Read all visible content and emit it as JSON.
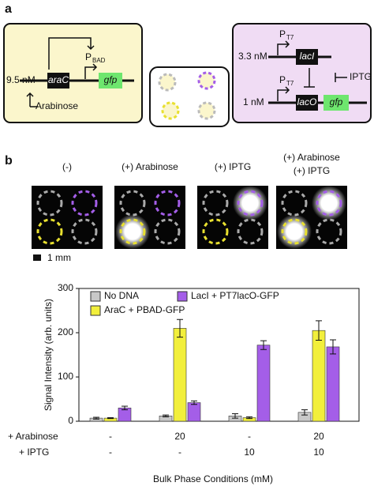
{
  "panel_a": {
    "label": "a",
    "left": {
      "conc": "9.5 nM",
      "gene": "araC",
      "reporter": "gfp",
      "promoter": "P",
      "promoter_sub": "BAD",
      "inducer": "Arabinose"
    },
    "right": {
      "promoter1": "P",
      "promoter1_sub": "T7",
      "conc1": "3.3 nM",
      "gene1": "lacI",
      "inducer": "IPTG",
      "promoter2": "P",
      "promoter2_sub": "T7",
      "conc2": "1 nM",
      "operator": "lacO",
      "reporter": "gfp"
    }
  },
  "panel_b": {
    "label": "b",
    "conditions": [
      [
        "(-)"
      ],
      [
        "(+) Arabinose"
      ],
      [
        "(+) IPTG"
      ],
      [
        "(+) Arabinose",
        "(+) IPTG"
      ]
    ],
    "scale_bar": "1 mm"
  },
  "chart_data": {
    "type": "bar",
    "ylabel": "Signal Intensity (arb. units)",
    "xlabel": "Bulk Phase Conditions (mM)",
    "ylim": [
      0,
      300
    ],
    "yticks": [
      0,
      100,
      200,
      300
    ],
    "series": [
      {
        "name": "No DNA",
        "color": "#c8c8c8",
        "values": [
          7,
          12,
          12,
          20
        ],
        "errors": [
          2,
          2,
          5,
          6
        ]
      },
      {
        "name": "AraC + PBAD-GFP",
        "color": "#f2ef3c",
        "values": [
          7,
          210,
          8,
          205
        ],
        "errors": [
          1,
          20,
          2,
          22
        ]
      },
      {
        "name": "LacI + PT7lacO-GFP",
        "color": "#a45ee8",
        "values": [
          30,
          42,
          172,
          168
        ],
        "errors": [
          4,
          4,
          10,
          16
        ]
      }
    ],
    "condition_rows": [
      {
        "label": "+ Arabinose",
        "values": [
          "-",
          "20",
          "-",
          "20"
        ]
      },
      {
        "label": "+ IPTG",
        "values": [
          "-",
          "-",
          "10",
          "10"
        ]
      }
    ]
  }
}
